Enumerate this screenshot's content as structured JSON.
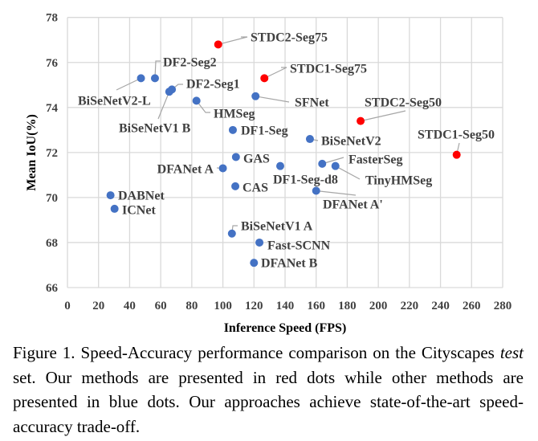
{
  "chart_data": {
    "type": "scatter",
    "xlabel": "Inference Speed (FPS)",
    "ylabel": "Mean IoU(%)",
    "xlim": [
      0,
      280
    ],
    "ylim": [
      66,
      78
    ],
    "xticks": [
      0,
      20,
      40,
      60,
      80,
      100,
      120,
      140,
      160,
      180,
      200,
      220,
      240,
      260,
      280
    ],
    "yticks": [
      66,
      68,
      70,
      72,
      74,
      76,
      78
    ],
    "grid": true,
    "colors": {
      "ours": "#ff0000",
      "others": "#4472c4",
      "grid": "#d9d9d9",
      "leader": "#a6a6a6"
    },
    "points": [
      {
        "name": "STDC2-Seg75",
        "x": 97,
        "y": 76.8,
        "group": "ours"
      },
      {
        "name": "STDC1-Seg75",
        "x": 126.7,
        "y": 75.3,
        "group": "ours"
      },
      {
        "name": "STDC2-Seg50",
        "x": 188.6,
        "y": 73.4,
        "group": "ours"
      },
      {
        "name": "STDC1-Seg50",
        "x": 250.4,
        "y": 71.9,
        "group": "ours"
      },
      {
        "name": "DF2-Seg2",
        "x": 56.3,
        "y": 75.3,
        "group": "others"
      },
      {
        "name": "BiSeNetV2-L",
        "x": 47.3,
        "y": 75.3,
        "group": "others"
      },
      {
        "name": "DF2-Seg1",
        "x": 67.2,
        "y": 74.8,
        "group": "others"
      },
      {
        "name": "BiSeNetV1 B",
        "x": 65.5,
        "y": 74.7,
        "group": "others"
      },
      {
        "name": "HMSeg",
        "x": 83,
        "y": 74.3,
        "group": "others"
      },
      {
        "name": "SFNet",
        "x": 121,
        "y": 74.5,
        "group": "others"
      },
      {
        "name": "DF1-Seg",
        "x": 106.4,
        "y": 73.0,
        "group": "others"
      },
      {
        "name": "GAS",
        "x": 108.4,
        "y": 71.8,
        "group": "others"
      },
      {
        "name": "DFANet A",
        "x": 100,
        "y": 71.3,
        "group": "others"
      },
      {
        "name": "DF1-Seg-d8",
        "x": 136.9,
        "y": 71.4,
        "group": "others"
      },
      {
        "name": "CAS",
        "x": 108,
        "y": 70.5,
        "group": "others"
      },
      {
        "name": "DABNet",
        "x": 27.7,
        "y": 70.1,
        "group": "others"
      },
      {
        "name": "ICNet",
        "x": 30.3,
        "y": 69.5,
        "group": "others"
      },
      {
        "name": "BiSeNetV1 A",
        "x": 105.8,
        "y": 68.4,
        "group": "others"
      },
      {
        "name": "Fast-SCNN",
        "x": 123.5,
        "y": 68.0,
        "group": "others"
      },
      {
        "name": "DFANet B",
        "x": 120,
        "y": 67.1,
        "group": "others"
      },
      {
        "name": "BiSeNetV2",
        "x": 156,
        "y": 72.6,
        "group": "others"
      },
      {
        "name": "FasterSeg",
        "x": 163.9,
        "y": 71.5,
        "group": "others"
      },
      {
        "name": "TinyHMSeg",
        "x": 172.4,
        "y": 71.4,
        "group": "others"
      },
      {
        "name": "DFANet A'",
        "x": 160,
        "y": 70.3,
        "group": "others"
      }
    ]
  },
  "caption": {
    "prefix": "Figure 1. Speed-Accuracy performance comparison on the Cityscapes ",
    "italic": "test",
    "suffix": " set. Our methods are presented in red dots while other methods are presented in blue dots. Our approaches achieve state-of-the-art speed-accuracy trade-off."
  }
}
